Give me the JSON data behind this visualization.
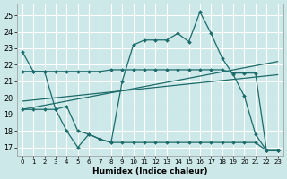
{
  "xlabel": "Humidex (Indice chaleur)",
  "bg_color": "#cce8e8",
  "line_color": "#1d6b6b",
  "grid_color": "#ffffff",
  "xlim": [
    -0.5,
    23.5
  ],
  "ylim": [
    16.5,
    25.7
  ],
  "yticks": [
    17,
    18,
    19,
    20,
    21,
    22,
    23,
    24,
    25
  ],
  "xticks": [
    0,
    1,
    2,
    3,
    4,
    5,
    6,
    7,
    8,
    9,
    10,
    11,
    12,
    13,
    14,
    15,
    16,
    17,
    18,
    19,
    20,
    21,
    22,
    23
  ],
  "s1_y": [
    22.8,
    21.6,
    21.6,
    19.3,
    19.5,
    18.0,
    17.8,
    17.5,
    17.3,
    21.0,
    23.2,
    23.5,
    23.5,
    23.5,
    23.9,
    23.4,
    25.2,
    23.9,
    22.4,
    21.4,
    20.1,
    17.8,
    16.8,
    16.8
  ],
  "s2_y": [
    21.6,
    21.6,
    21.6,
    21.6,
    21.6,
    21.6,
    21.6,
    21.6,
    21.7,
    21.7,
    21.7,
    21.7,
    21.7,
    21.7,
    21.7,
    21.7,
    21.7,
    21.7,
    21.7,
    21.5,
    21.5,
    21.5,
    16.8,
    16.8
  ],
  "s3_y": [
    19.3,
    19.3,
    19.3,
    19.3,
    18.0,
    17.0,
    17.8,
    17.5,
    17.3,
    17.3,
    17.3,
    17.3,
    17.3,
    17.3,
    17.3,
    17.3,
    17.3,
    17.3,
    17.3,
    17.3,
    17.3,
    17.3,
    16.8,
    16.8
  ],
  "t1_start": 19.3,
  "t1_end": 22.2,
  "t2_start": 19.8,
  "t2_end": 21.4
}
